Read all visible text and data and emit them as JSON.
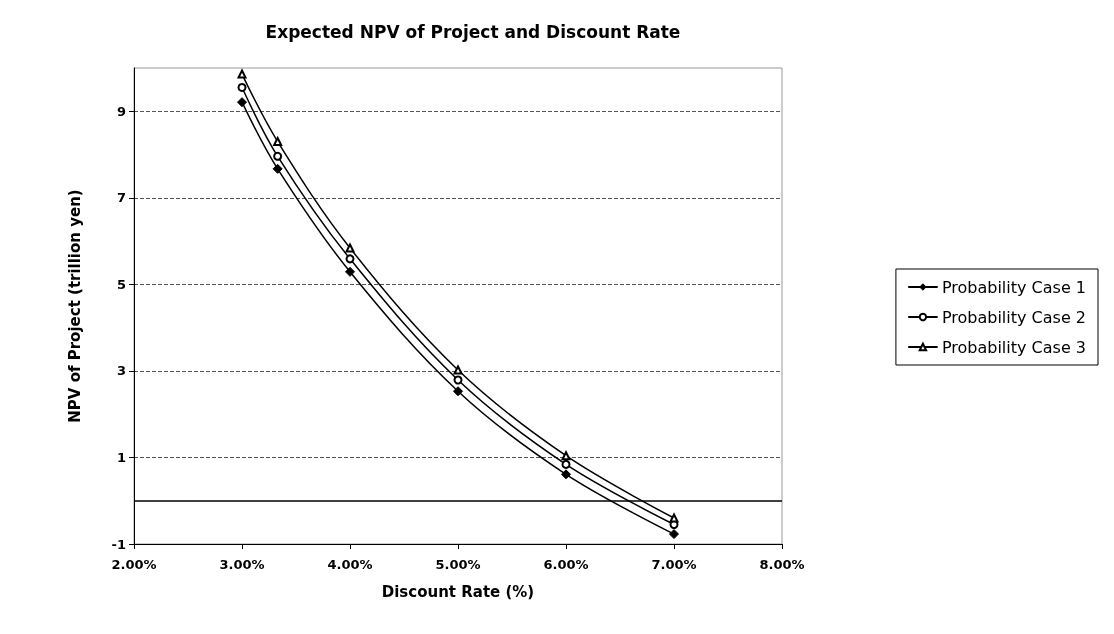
{
  "chart_data": {
    "type": "line",
    "title": "Expected NPV of Project and Discount Rate",
    "xlabel": "Discount Rate (%)",
    "ylabel": "NPV of Project (trillion yen)",
    "x": [
      3,
      3.33,
      4,
      5,
      6,
      7
    ],
    "series": [
      {
        "name": "Probability Case 1",
        "color": "#000000",
        "marker": "diamond",
        "values": [
          9.21,
          7.67,
          5.29,
          2.53,
          0.61,
          -0.77
        ]
      },
      {
        "name": "Probability Case 2",
        "color": "#000000",
        "marker": "circle",
        "values": [
          9.55,
          7.96,
          5.59,
          2.79,
          0.84,
          -0.55
        ]
      },
      {
        "name": "Probability Case 3",
        "color": "#000000",
        "marker": "triangle",
        "values": [
          9.86,
          8.3,
          5.84,
          3.02,
          1.04,
          -0.4
        ]
      }
    ],
    "xlim": [
      2,
      8
    ],
    "xticks": [
      {
        "value": 2,
        "label": "2.00%"
      },
      {
        "value": 3,
        "label": "3.00%"
      },
      {
        "value": 4,
        "label": "4.00%"
      },
      {
        "value": 5,
        "label": "5.00%"
      },
      {
        "value": 6,
        "label": "6.00%"
      },
      {
        "value": 7,
        "label": "7.00%"
      },
      {
        "value": 8,
        "label": "8.00%"
      }
    ],
    "ylim": [
      -1,
      10
    ],
    "yticks": [
      -1,
      1,
      3,
      5,
      7,
      9
    ],
    "ref_lines": [
      {
        "axis": "y",
        "value": 0,
        "color": "#000000"
      }
    ],
    "grid": "y",
    "legend": "right",
    "line_style": "solid"
  }
}
